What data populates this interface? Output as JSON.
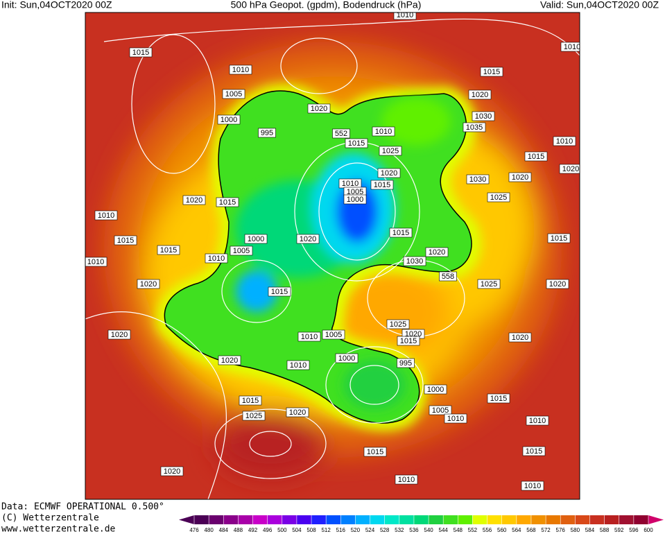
{
  "header": {
    "init": "Init: Sun,04OCT2020 00Z",
    "title": "500 hPa Geopot. (gpdm), Bodendruck (hPa)",
    "valid": "Valid: Sun,04OCT2020 00Z"
  },
  "footer": {
    "source": "Data: ECMWF OPERATIONAL 0.500°",
    "copyright": "(C) Wetterzentrale",
    "url": "www.wetterzentrale.de"
  },
  "colorbar": {
    "ticks": [
      476,
      480,
      484,
      488,
      492,
      496,
      500,
      504,
      508,
      512,
      516,
      520,
      524,
      528,
      532,
      536,
      540,
      544,
      548,
      552,
      556,
      560,
      564,
      568,
      572,
      576,
      580,
      584,
      588,
      592,
      596,
      600
    ],
    "colors": [
      "#4b0055",
      "#6a006e",
      "#8a008a",
      "#a800a8",
      "#c800c8",
      "#aa00dd",
      "#7a00e6",
      "#4a00f0",
      "#2020ff",
      "#0050ff",
      "#0080ff",
      "#00b0ff",
      "#00d8f0",
      "#00e8c8",
      "#00e0a0",
      "#00d878",
      "#20d040",
      "#40e020",
      "#60f000",
      "#e0ff00",
      "#ffe000",
      "#ffc800",
      "#ffa800",
      "#f09000",
      "#e87800",
      "#e06010",
      "#d84818",
      "#c83020",
      "#b82020",
      "#a01030",
      "#900030"
    ]
  },
  "isobar_labels": [
    "1015",
    "1010",
    "1005",
    "1000",
    "995",
    "1020",
    "552",
    "1015",
    "1010",
    "1025",
    "1020",
    "1010",
    "1005",
    "1000",
    "1015",
    "1015",
    "1020",
    "1030",
    "1035",
    "1015",
    "1030",
    "1020",
    "1025",
    "1015",
    "1020",
    "1015",
    "1030",
    "558",
    "1025",
    "1020",
    "1020",
    "1015",
    "1010",
    "1015",
    "1015",
    "1005",
    "1000",
    "1020",
    "1010",
    "1010",
    "1020",
    "1015",
    "1020",
    "1010",
    "1005",
    "1025",
    "1020",
    "1015",
    "1000",
    "995",
    "1020",
    "1010",
    "1000",
    "1015",
    "1005",
    "1010",
    "1015",
    "1025",
    "1020",
    "1010",
    "1015",
    "1015",
    "1020",
    "1010",
    "1010",
    "1020",
    "1010",
    "1020",
    "1010",
    "1010"
  ]
}
